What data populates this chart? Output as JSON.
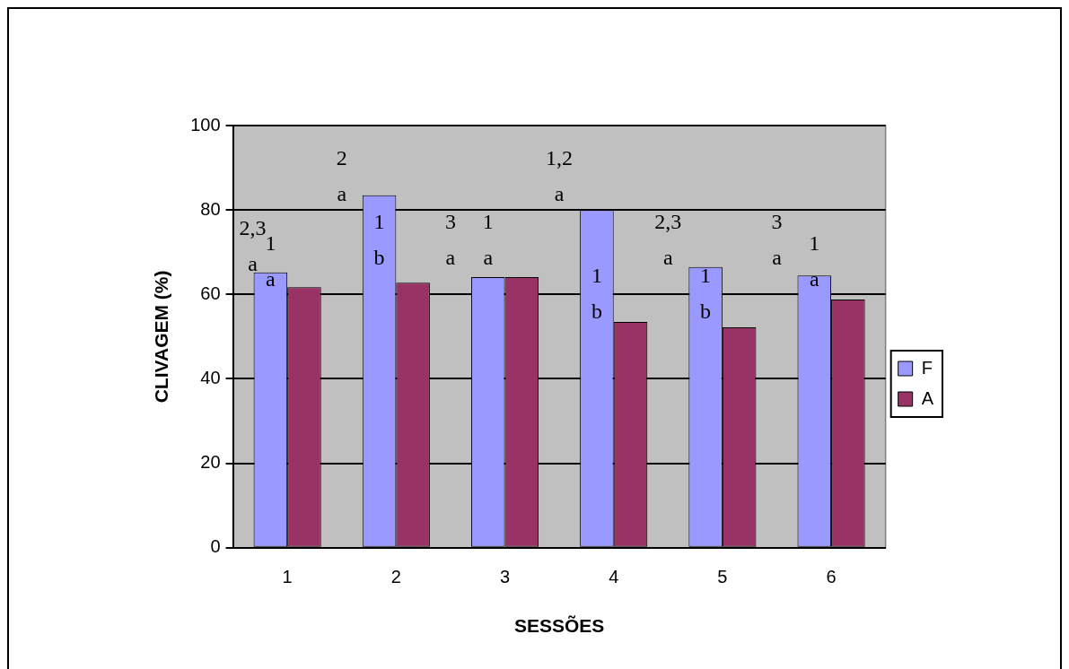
{
  "chart_data": {
    "type": "bar",
    "xlabel": "SESSÕES",
    "ylabel": "CLIVAGEM (%)",
    "categories": [
      "1",
      "2",
      "3",
      "4",
      "5",
      "6"
    ],
    "series": [
      {
        "name": "F",
        "color": "#9999ff",
        "values": [
          65.2,
          83.5,
          64.1,
          80,
          66.5,
          64.5
        ]
      },
      {
        "name": "A",
        "color": "#993366",
        "values": [
          61.7,
          62.8,
          64.1,
          53.5,
          52.2,
          58.8
        ]
      }
    ],
    "ylim": [
      0,
      100
    ],
    "yticks": [
      0,
      20,
      40,
      60,
      80,
      100
    ],
    "grid": "y",
    "legend": "right",
    "annotations": [
      "2,3\na",
      "1\na",
      "2\na",
      "1\nb",
      "3\na",
      "1\na",
      "1,2\na",
      "1\nb",
      "2,3\na",
      "1\nb",
      "3\na",
      "1\na"
    ]
  }
}
